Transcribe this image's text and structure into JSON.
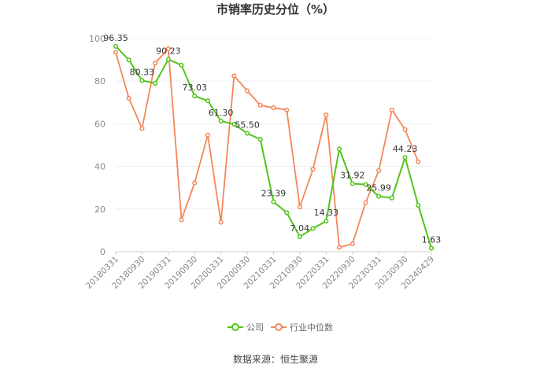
{
  "chart_data": {
    "type": "line",
    "title": "市销率历史分位（%）",
    "source": "数据来源：恒生聚源",
    "ylim": [
      0,
      100
    ],
    "yticks": [
      0,
      20,
      40,
      60,
      80,
      100
    ],
    "grid": "horizontal",
    "legend_placement": "bottom-center",
    "x_tick_labels": [
      "20180331",
      "20180930",
      "20190331",
      "20190930",
      "20200331",
      "20200930",
      "20210331",
      "20210930",
      "20220331",
      "20220930",
      "20230331",
      "20230930",
      "20240429"
    ],
    "x": [
      "20180331",
      "20180630",
      "20180930",
      "20181231",
      "20190331",
      "20190630",
      "20190930",
      "20191231",
      "20200331",
      "20200630",
      "20200930",
      "20201231",
      "20210331",
      "20210630",
      "20210930",
      "20211231",
      "20220331",
      "20220630",
      "20220930",
      "20221231",
      "20230331",
      "20230630",
      "20230930",
      "20231231",
      "20240429"
    ],
    "series": [
      {
        "name": "公司",
        "color": "#52c41a",
        "values": [
          96.35,
          90.0,
          80.33,
          79.0,
          90.23,
          87.5,
          73.03,
          70.8,
          61.3,
          59.8,
          55.5,
          52.7,
          23.39,
          18.3,
          7.04,
          10.9,
          14.33,
          48.2,
          31.92,
          31.5,
          25.99,
          25.2,
          44.23,
          21.8,
          1.63
        ],
        "labels": {
          "0": "96.35",
          "2": "80.33",
          "4": "90.23",
          "6": "73.03",
          "8": "61.30",
          "10": "55.50",
          "12": "23.39",
          "14": "7.04",
          "16": "14.33",
          "18": "31.92",
          "20": "25.99",
          "22": "44.23",
          "24": "1.63"
        }
      },
      {
        "name": "行业中位数",
        "color": "#f4865a",
        "values": [
          93.5,
          72.0,
          57.8,
          88.5,
          95.2,
          15.0,
          32.3,
          54.7,
          13.8,
          82.5,
          75.5,
          68.7,
          67.5,
          66.5,
          21.0,
          38.7,
          64.2,
          2.0,
          3.7,
          23.0,
          38.0,
          66.5,
          57.3,
          42.2,
          null
        ]
      }
    ]
  }
}
